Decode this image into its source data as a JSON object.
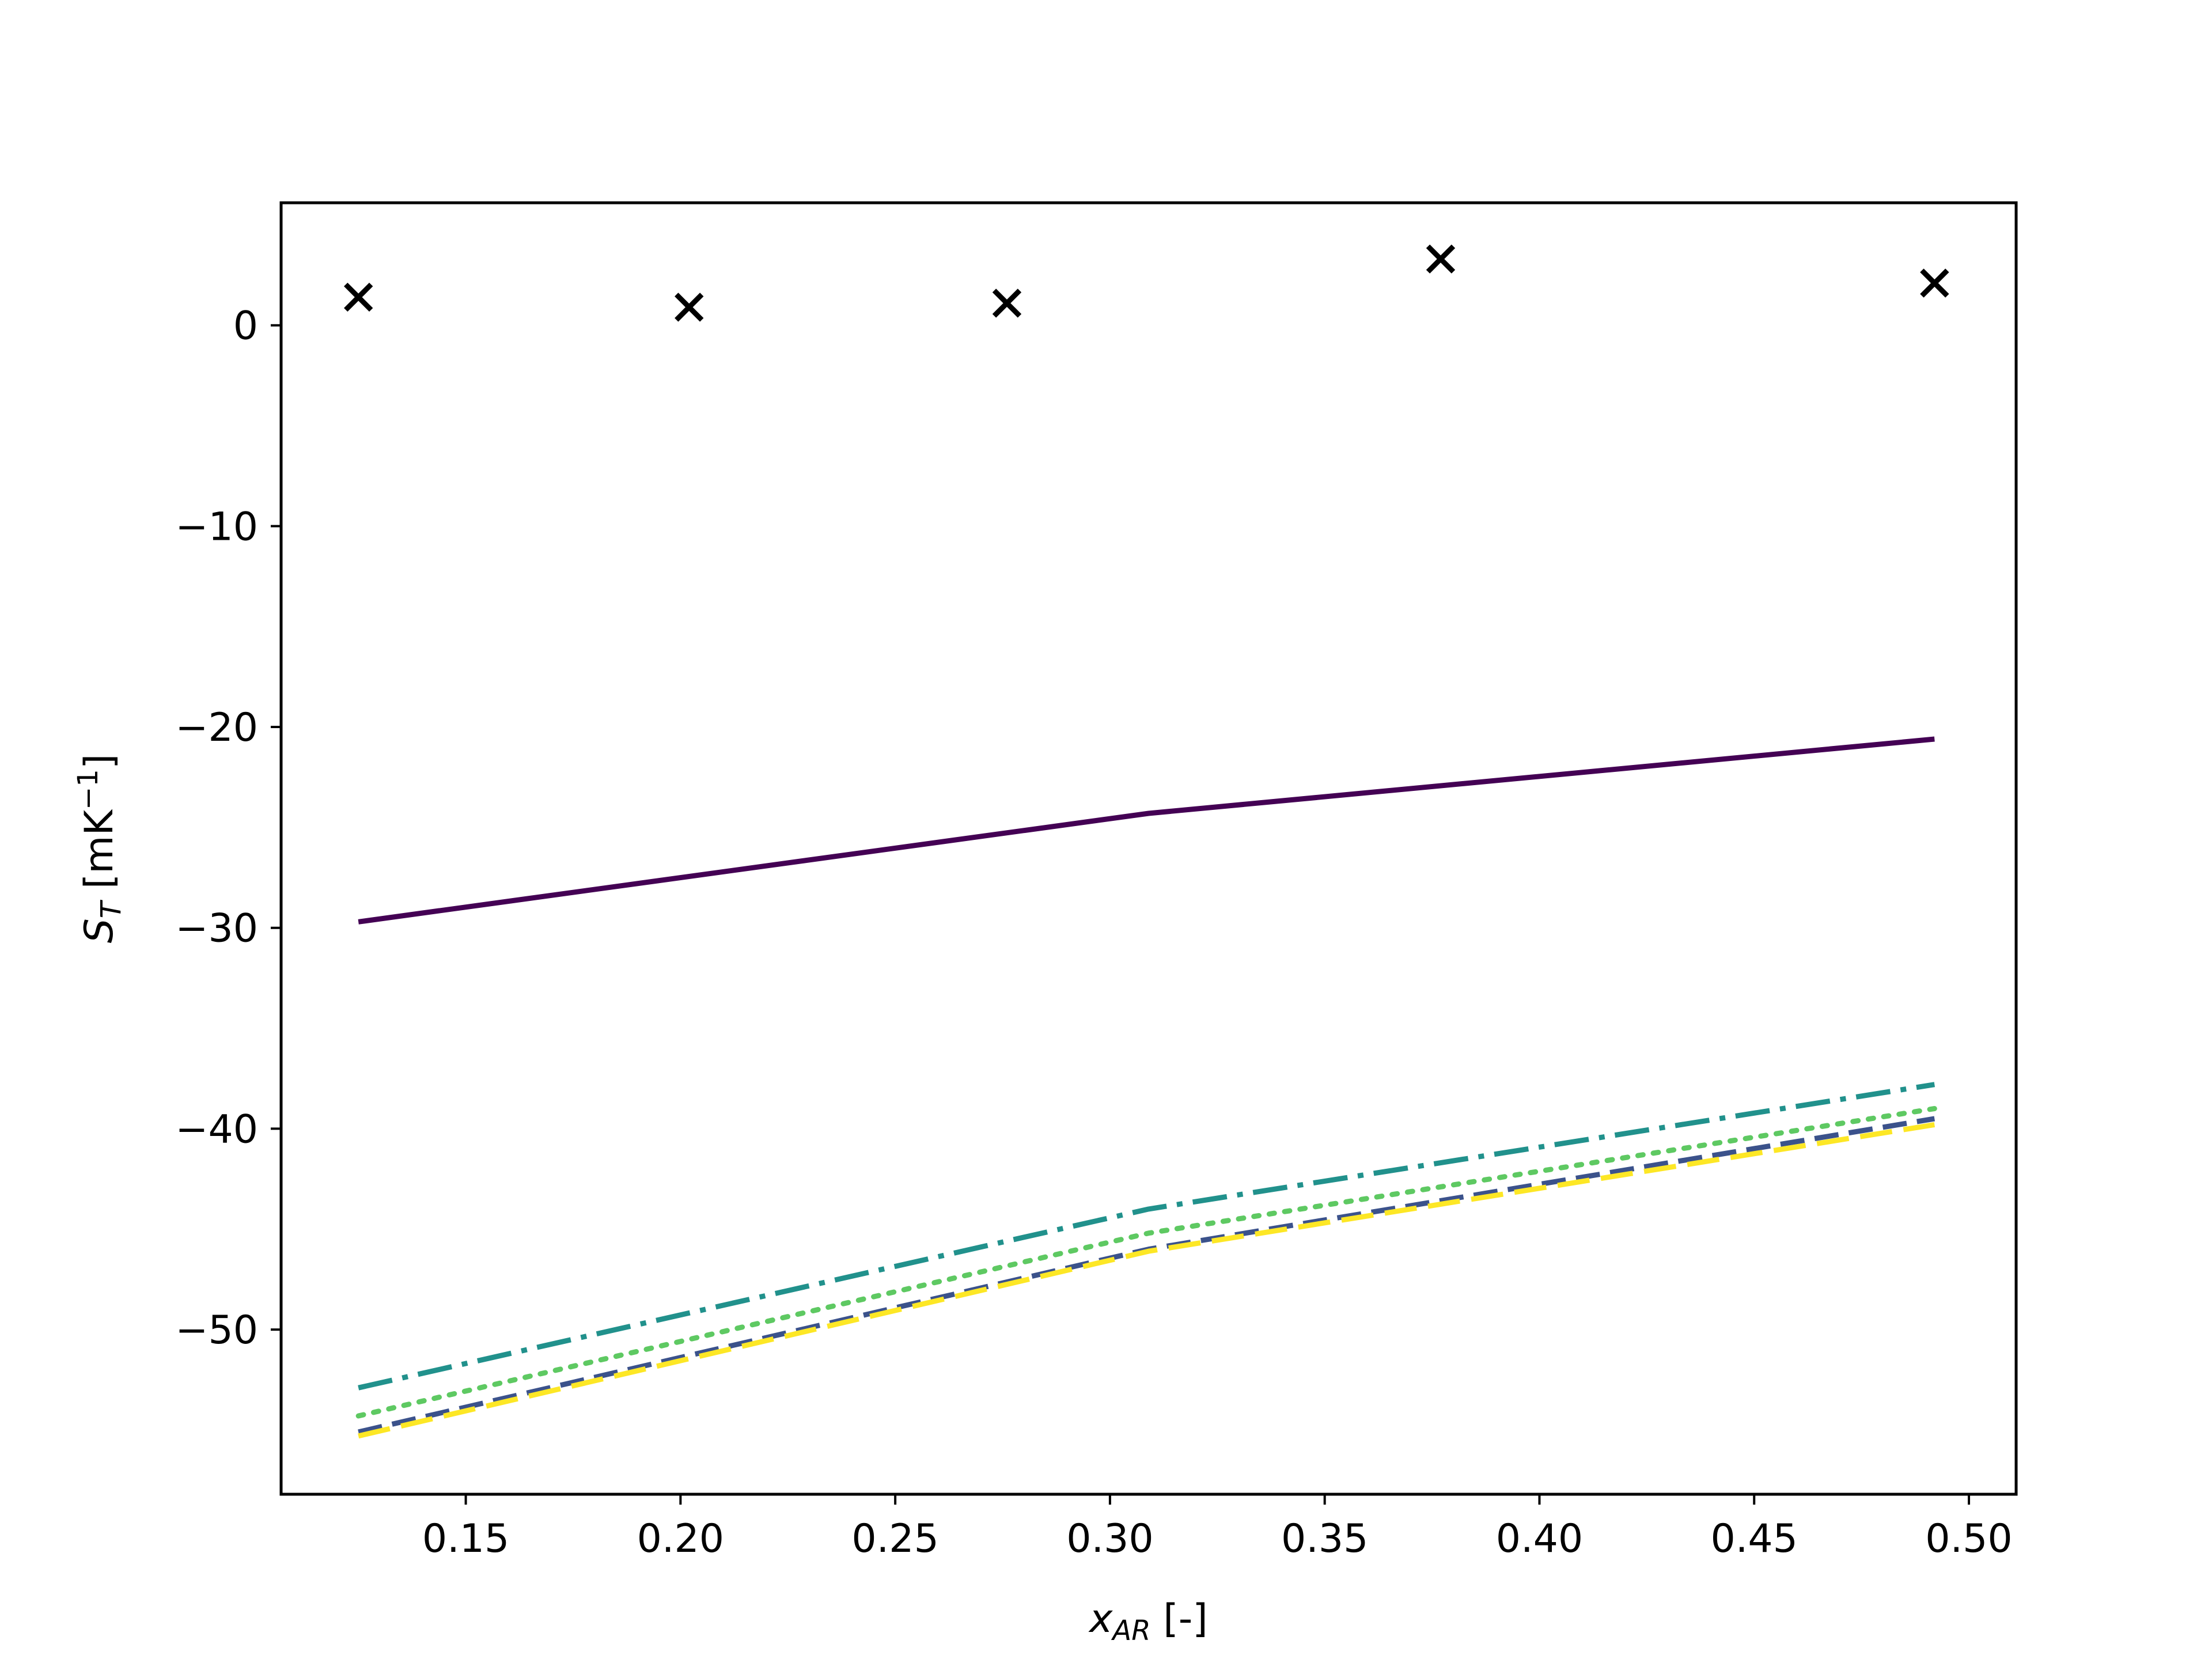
{
  "chart_data": {
    "type": "line",
    "title": "",
    "xlabel_parts": [
      {
        "text": "x",
        "style": "italic",
        "shift": "0"
      },
      {
        "text": "AR",
        "style": "italic-sub",
        "shift": "14"
      },
      {
        "text": " [-]",
        "style": "normal",
        "shift": "-14"
      }
    ],
    "ylabel_parts": [
      {
        "text": "S",
        "style": "italic",
        "shift": "0"
      },
      {
        "text": "T",
        "style": "italic-sub",
        "shift": "14"
      },
      {
        "text": " [mK",
        "style": "normal",
        "shift": "-14"
      },
      {
        "text": "−1",
        "style": "sup",
        "shift": "-26"
      },
      {
        "text": "]",
        "style": "normal",
        "shift": "26"
      }
    ],
    "xlim": [
      0.107,
      0.511
    ],
    "ylim": [
      -58.2,
      6.1
    ],
    "x_ticks": [
      0.15,
      0.2,
      0.25,
      0.3,
      0.35,
      0.4,
      0.45,
      0.5
    ],
    "x_tick_labels": [
      "0.15",
      "0.20",
      "0.25",
      "0.30",
      "0.35",
      "0.40",
      "0.45",
      "0.50"
    ],
    "y_ticks": [
      0,
      -10,
      -20,
      -30,
      -40,
      -50
    ],
    "y_tick_labels": [
      "0",
      "−10",
      "−20",
      "−30",
      "−40",
      "−50"
    ],
    "grid": false,
    "legend": "none",
    "series": [
      {
        "kind": "line",
        "color": "#440154",
        "dash": "solid",
        "x": [
          0.125,
          0.309,
          0.492
        ],
        "values": [
          -29.7,
          -24.3,
          -20.6
        ]
      },
      {
        "kind": "line",
        "color": "#3b528b",
        "dash": "dashed",
        "x": [
          0.125,
          0.309,
          0.492
        ],
        "values": [
          -55.1,
          -46.0,
          -39.5
        ]
      },
      {
        "kind": "line",
        "color": "#21918c",
        "dash": "dashdot",
        "x": [
          0.125,
          0.309,
          0.492
        ],
        "values": [
          -52.9,
          -44.0,
          -37.8
        ]
      },
      {
        "kind": "line",
        "color": "#5ec962",
        "dash": "dotted",
        "x": [
          0.125,
          0.309,
          0.492
        ],
        "values": [
          -54.3,
          -45.2,
          -39.0
        ]
      },
      {
        "kind": "line",
        "color": "#fde725",
        "dash": "longdash",
        "x": [
          0.125,
          0.309,
          0.492
        ],
        "values": [
          -55.3,
          -46.1,
          -39.8
        ]
      },
      {
        "kind": "scatter",
        "marker": "x",
        "color": "#000000",
        "x": [
          0.125,
          0.202,
          0.276,
          0.377,
          0.492
        ],
        "values": [
          1.4,
          0.9,
          1.1,
          3.3,
          2.1
        ]
      }
    ]
  }
}
